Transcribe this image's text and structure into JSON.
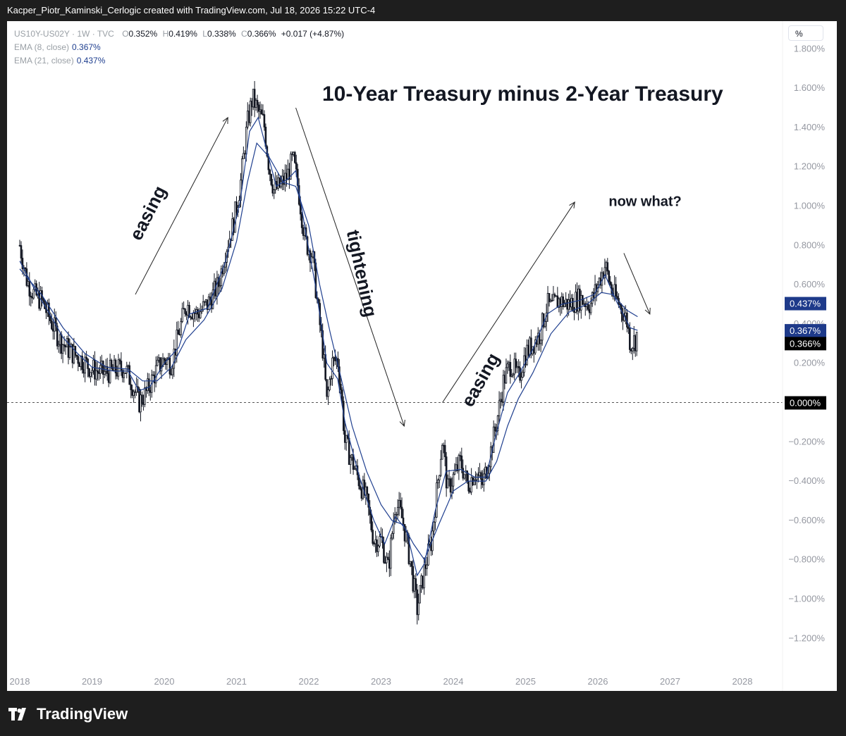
{
  "header": {
    "caption": "Kacper_Piotr_Kaminski_Cerlogic created with TradingView.com, Jul 18, 2026 15:22 UTC-4"
  },
  "legend": {
    "symbol": "US10Y-US02Y · 1W · TVC",
    "o_label": "O",
    "o_value": "0.352%",
    "h_label": "H",
    "h_value": "0.419%",
    "l_label": "L",
    "l_value": "0.338%",
    "c_label": "C",
    "c_value": "0.366%",
    "change": "+0.017 (+4.87%)",
    "ema8_label": "EMA (8, close)",
    "ema8_value": "0.367%",
    "ema21_label": "EMA (21, close)",
    "ema21_value": "0.437%"
  },
  "scale_button": "%",
  "footer": {
    "brand": "TradingView"
  },
  "colors": {
    "candle": "#131722",
    "ema": "#1f3f8f",
    "ema_badge": "#1e3a8a",
    "price_badge": "#000000"
  },
  "chart_data": {
    "type": "candlestick",
    "title": "10-Year Treasury minus 2-Year Treasury",
    "ylabel": "%",
    "ylim": [
      -1.3,
      1.9
    ],
    "xlim": [
      2018.0,
      2028.6
    ],
    "y_ticks": [
      "1.800%",
      "1.600%",
      "1.400%",
      "1.200%",
      "1.000%",
      "0.800%",
      "0.600%",
      "0.400%",
      "0.200%",
      "0.000%",
      "−0.200%",
      "−0.400%",
      "−0.600%",
      "−0.800%",
      "−1.000%",
      "−1.200%"
    ],
    "y_tick_values": [
      1.8,
      1.6,
      1.4,
      1.2,
      1.0,
      0.8,
      0.6,
      0.4,
      0.2,
      0.0,
      -0.2,
      -0.4,
      -0.6,
      -0.8,
      -1.0,
      -1.2
    ],
    "x_ticks": [
      "2018",
      "2019",
      "2020",
      "2021",
      "2022",
      "2023",
      "2024",
      "2025",
      "2026",
      "2027",
      "2028"
    ],
    "x_tick_values": [
      2018.0,
      2019.0,
      2020.0,
      2021.0,
      2022.0,
      2023.0,
      2024.0,
      2025.0,
      2026.0,
      2027.0,
      2028.0
    ],
    "close_path": [
      [
        2018.0,
        0.8
      ],
      [
        2018.1,
        0.62
      ],
      [
        2018.2,
        0.55
      ],
      [
        2018.3,
        0.52
      ],
      [
        2018.4,
        0.44
      ],
      [
        2018.55,
        0.32
      ],
      [
        2018.7,
        0.26
      ],
      [
        2018.85,
        0.22
      ],
      [
        2019.0,
        0.17
      ],
      [
        2019.15,
        0.15
      ],
      [
        2019.3,
        0.16
      ],
      [
        2019.45,
        0.18
      ],
      [
        2019.55,
        0.1
      ],
      [
        2019.65,
        0.0
      ],
      [
        2019.75,
        0.05
      ],
      [
        2019.9,
        0.17
      ],
      [
        2020.0,
        0.22
      ],
      [
        2020.1,
        0.2
      ],
      [
        2020.2,
        0.35
      ],
      [
        2020.3,
        0.5
      ],
      [
        2020.45,
        0.45
      ],
      [
        2020.6,
        0.5
      ],
      [
        2020.75,
        0.6
      ],
      [
        2020.85,
        0.78
      ],
      [
        2020.95,
        0.9
      ],
      [
        2021.05,
        1.1
      ],
      [
        2021.15,
        1.42
      ],
      [
        2021.22,
        1.55
      ],
      [
        2021.3,
        1.48
      ],
      [
        2021.38,
        1.42
      ],
      [
        2021.45,
        1.2
      ],
      [
        2021.52,
        1.08
      ],
      [
        2021.6,
        1.1
      ],
      [
        2021.7,
        1.15
      ],
      [
        2021.78,
        1.24
      ],
      [
        2021.85,
        1.1
      ],
      [
        2021.95,
        0.82
      ],
      [
        2022.05,
        0.75
      ],
      [
        2022.12,
        0.5
      ],
      [
        2022.2,
        0.25
      ],
      [
        2022.25,
        0.0
      ],
      [
        2022.32,
        0.2
      ],
      [
        2022.4,
        0.22
      ],
      [
        2022.45,
        0.05
      ],
      [
        2022.5,
        -0.2
      ],
      [
        2022.6,
        -0.3
      ],
      [
        2022.7,
        -0.4
      ],
      [
        2022.8,
        -0.5
      ],
      [
        2022.9,
        -0.7
      ],
      [
        2023.0,
        -0.7
      ],
      [
        2023.1,
        -0.85
      ],
      [
        2023.2,
        -0.5
      ],
      [
        2023.3,
        -0.6
      ],
      [
        2023.4,
        -0.8
      ],
      [
        2023.5,
        -1.05
      ],
      [
        2023.6,
        -0.85
      ],
      [
        2023.7,
        -0.7
      ],
      [
        2023.8,
        -0.35
      ],
      [
        2023.85,
        -0.18
      ],
      [
        2023.92,
        -0.45
      ],
      [
        2024.0,
        -0.38
      ],
      [
        2024.1,
        -0.3
      ],
      [
        2024.2,
        -0.42
      ],
      [
        2024.3,
        -0.35
      ],
      [
        2024.4,
        -0.42
      ],
      [
        2024.5,
        -0.28
      ],
      [
        2024.6,
        -0.1
      ],
      [
        2024.7,
        0.12
      ],
      [
        2024.8,
        0.2
      ],
      [
        2024.9,
        0.12
      ],
      [
        2025.0,
        0.25
      ],
      [
        2025.1,
        0.3
      ],
      [
        2025.2,
        0.35
      ],
      [
        2025.3,
        0.5
      ],
      [
        2025.35,
        0.48
      ],
      [
        2025.45,
        0.52
      ],
      [
        2025.6,
        0.5
      ],
      [
        2025.75,
        0.53
      ],
      [
        2025.9,
        0.5
      ],
      [
        2026.0,
        0.6
      ],
      [
        2026.1,
        0.7
      ],
      [
        2026.2,
        0.56
      ],
      [
        2026.3,
        0.5
      ],
      [
        2026.4,
        0.42
      ],
      [
        2026.45,
        0.3
      ],
      [
        2026.52,
        0.32
      ],
      [
        2026.55,
        0.366
      ]
    ],
    "ema8_path": [
      [
        2018.0,
        0.72
      ],
      [
        2018.2,
        0.58
      ],
      [
        2018.4,
        0.46
      ],
      [
        2018.6,
        0.33
      ],
      [
        2018.8,
        0.25
      ],
      [
        2019.0,
        0.18
      ],
      [
        2019.3,
        0.16
      ],
      [
        2019.5,
        0.16
      ],
      [
        2019.65,
        0.06
      ],
      [
        2019.8,
        0.08
      ],
      [
        2020.0,
        0.2
      ],
      [
        2020.2,
        0.28
      ],
      [
        2020.35,
        0.45
      ],
      [
        2020.6,
        0.48
      ],
      [
        2020.85,
        0.72
      ],
      [
        2021.05,
        1.02
      ],
      [
        2021.18,
        1.38
      ],
      [
        2021.3,
        1.45
      ],
      [
        2021.45,
        1.24
      ],
      [
        2021.55,
        1.1
      ],
      [
        2021.72,
        1.14
      ],
      [
        2021.82,
        1.18
      ],
      [
        2021.95,
        0.88
      ],
      [
        2022.1,
        0.58
      ],
      [
        2022.25,
        0.2
      ],
      [
        2022.4,
        0.12
      ],
      [
        2022.5,
        -0.1
      ],
      [
        2022.7,
        -0.38
      ],
      [
        2022.9,
        -0.6
      ],
      [
        2023.05,
        -0.72
      ],
      [
        2023.2,
        -0.58
      ],
      [
        2023.35,
        -0.65
      ],
      [
        2023.5,
        -0.88
      ],
      [
        2023.6,
        -0.82
      ],
      [
        2023.75,
        -0.55
      ],
      [
        2023.9,
        -0.35
      ],
      [
        2024.1,
        -0.34
      ],
      [
        2024.3,
        -0.38
      ],
      [
        2024.45,
        -0.38
      ],
      [
        2024.6,
        -0.15
      ],
      [
        2024.75,
        0.05
      ],
      [
        2024.9,
        0.14
      ],
      [
        2025.1,
        0.27
      ],
      [
        2025.3,
        0.45
      ],
      [
        2025.5,
        0.5
      ],
      [
        2025.75,
        0.52
      ],
      [
        2025.95,
        0.55
      ],
      [
        2026.1,
        0.65
      ],
      [
        2026.25,
        0.52
      ],
      [
        2026.45,
        0.38
      ],
      [
        2026.55,
        0.367
      ]
    ],
    "ema21_path": [
      [
        2018.0,
        0.68
      ],
      [
        2018.3,
        0.55
      ],
      [
        2018.6,
        0.38
      ],
      [
        2018.9,
        0.25
      ],
      [
        2019.2,
        0.18
      ],
      [
        2019.5,
        0.17
      ],
      [
        2019.7,
        0.11
      ],
      [
        2019.9,
        0.11
      ],
      [
        2020.1,
        0.18
      ],
      [
        2020.3,
        0.32
      ],
      [
        2020.55,
        0.42
      ],
      [
        2020.8,
        0.58
      ],
      [
        2021.0,
        0.82
      ],
      [
        2021.15,
        1.12
      ],
      [
        2021.28,
        1.32
      ],
      [
        2021.45,
        1.25
      ],
      [
        2021.65,
        1.12
      ],
      [
        2021.82,
        1.1
      ],
      [
        2022.0,
        0.9
      ],
      [
        2022.15,
        0.6
      ],
      [
        2022.3,
        0.35
      ],
      [
        2022.45,
        0.12
      ],
      [
        2022.6,
        -0.12
      ],
      [
        2022.8,
        -0.35
      ],
      [
        2023.0,
        -0.52
      ],
      [
        2023.15,
        -0.6
      ],
      [
        2023.3,
        -0.62
      ],
      [
        2023.45,
        -0.72
      ],
      [
        2023.6,
        -0.8
      ],
      [
        2023.8,
        -0.62
      ],
      [
        2024.0,
        -0.45
      ],
      [
        2024.2,
        -0.4
      ],
      [
        2024.45,
        -0.4
      ],
      [
        2024.6,
        -0.3
      ],
      [
        2024.75,
        -0.12
      ],
      [
        2024.9,
        0.02
      ],
      [
        2025.1,
        0.15
      ],
      [
        2025.35,
        0.35
      ],
      [
        2025.6,
        0.46
      ],
      [
        2025.85,
        0.5
      ],
      [
        2026.05,
        0.56
      ],
      [
        2026.2,
        0.55
      ],
      [
        2026.4,
        0.47
      ],
      [
        2026.55,
        0.437
      ]
    ],
    "zero_line": 0.0,
    "annotations": [
      {
        "text": "easing",
        "x": 2019.85,
        "y": 0.95,
        "angle": -63
      },
      {
        "text": "tightening",
        "x": 2022.65,
        "y": 0.65,
        "angle": 78
      },
      {
        "text": "easing",
        "x": 2024.45,
        "y": 0.1,
        "angle": -61
      },
      {
        "text": "now what?",
        "x": 2026.15,
        "y": 1.0,
        "angle": 0
      }
    ],
    "arrows": [
      {
        "from": [
          2019.6,
          0.55
        ],
        "to": [
          2020.88,
          1.45
        ]
      },
      {
        "from": [
          2021.82,
          1.5
        ],
        "to": [
          2023.32,
          -0.12
        ]
      },
      {
        "from": [
          2023.85,
          0.0
        ],
        "to": [
          2025.68,
          1.02
        ]
      },
      {
        "from": [
          2026.36,
          0.76
        ],
        "to": [
          2026.72,
          0.45
        ]
      }
    ],
    "price_badges": [
      {
        "label": "0.437%",
        "value": 0.437,
        "color": "#1e3a8a"
      },
      {
        "label": "0.367%",
        "value": 0.367,
        "color": "#1e3a8a"
      },
      {
        "label": "0.366%",
        "value": 0.366,
        "color": "#000000"
      },
      {
        "label": "0.000%",
        "value": 0.0,
        "color": "#000000"
      }
    ]
  }
}
